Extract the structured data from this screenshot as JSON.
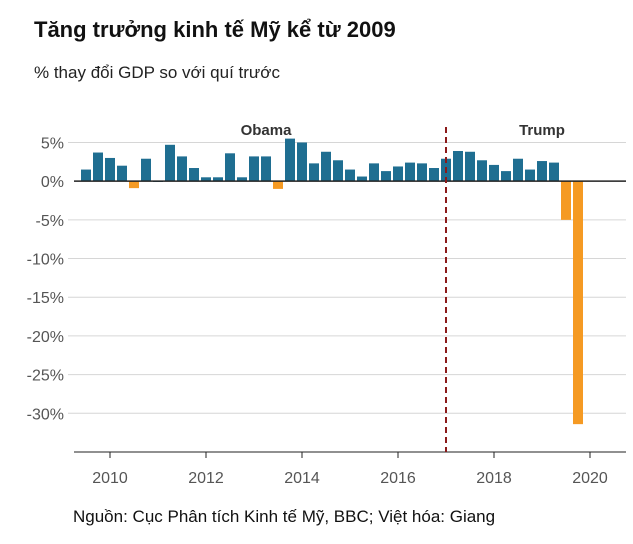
{
  "title": "Tăng trưởng kinh tế Mỹ kể từ 2009",
  "subtitle": "% thay đổi GDP so với quí trước",
  "source": "Nguồn: Cục Phân tích Kinh tế Mỹ, BBC; Việt hóa: Giang",
  "colors": {
    "positive": "#1f6e91",
    "negative": "#f59a23",
    "divider": "#8b1a1a",
    "grid": "#d6d6d6",
    "axis": "#222222"
  },
  "chart_data": {
    "type": "bar",
    "x_start": 2009.5,
    "x_step": 0.25,
    "xlim": [
      2009.25,
      2020.75
    ],
    "ylim": [
      -35,
      7
    ],
    "yticks": [
      5,
      0,
      -5,
      -10,
      -15,
      -20,
      -25,
      -30
    ],
    "ytick_labels": [
      "5%",
      "0%",
      "-5%",
      "-10%",
      "-15%",
      "-20%",
      "-25%",
      "-30%"
    ],
    "xticks": [
      2010,
      2012,
      2014,
      2016,
      2018,
      2020
    ],
    "xtick_labels": [
      "2010",
      "2012",
      "2014",
      "2016",
      "2018",
      "2020"
    ],
    "grid": true,
    "values": [
      1.5,
      3.7,
      3.0,
      2.0,
      -0.9,
      2.9,
      0.0,
      4.7,
      3.2,
      1.7,
      0.5,
      0.5,
      3.6,
      0.5,
      3.2,
      3.2,
      -1.0,
      5.5,
      5.0,
      2.3,
      3.8,
      2.7,
      1.5,
      0.6,
      2.3,
      1.3,
      1.9,
      2.4,
      2.3,
      1.7,
      2.9,
      3.9,
      3.8,
      2.7,
      2.1,
      1.3,
      2.9,
      1.5,
      2.6,
      2.4,
      -5.0,
      -31.4
    ],
    "eras": [
      {
        "label": "Obama",
        "center": 2013.25
      },
      {
        "label": "Trump",
        "center": 2019.0
      }
    ],
    "divider_x": 2017.0
  }
}
